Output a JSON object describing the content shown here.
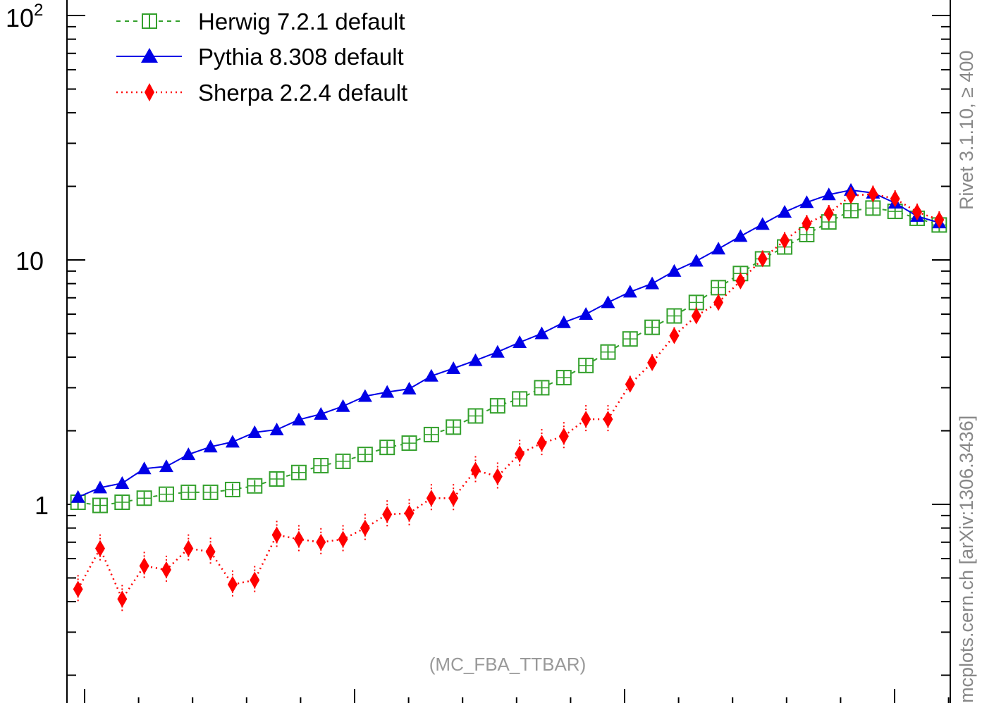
{
  "chart_data": {
    "type": "line",
    "title": "",
    "xlabel": "",
    "ylabel": "",
    "y_scale": "log",
    "ylim": [
      0.2,
      100
    ],
    "y_tick_labels": [
      {
        "value": 100,
        "base": "10",
        "exponent": "2"
      },
      {
        "value": 10,
        "label": "10"
      },
      {
        "value": 1,
        "label": "1"
      }
    ],
    "legend": {
      "placement": "top-left"
    },
    "annotation": "(MC_FBA_TTBAR)",
    "side_label_top": "Rivet 3.1.10, ≥ 400",
    "side_label_bottom": "mcplots.cern.ch [arXiv:1306.3436]",
    "bins": 40,
    "series": [
      {
        "name": "Herwig 7.2.1 default",
        "color": "#33a02c",
        "marker": "open-square",
        "line": "dashed",
        "values": [
          1.02,
          0.99,
          1.02,
          1.06,
          1.1,
          1.12,
          1.12,
          1.15,
          1.19,
          1.27,
          1.35,
          1.44,
          1.5,
          1.6,
          1.71,
          1.78,
          1.93,
          2.07,
          2.3,
          2.53,
          2.7,
          3.0,
          3.3,
          3.7,
          4.2,
          4.75,
          5.3,
          5.9,
          6.7,
          7.7,
          8.8,
          10.1,
          11.3,
          12.7,
          14.3,
          15.9,
          16.3,
          15.8,
          14.8,
          13.9
        ],
        "errors": [
          0.05,
          0.05,
          0.05,
          0.05,
          0.05,
          0.05,
          0.05,
          0.05,
          0.05,
          0.06,
          0.06,
          0.07,
          0.07,
          0.07,
          0.08,
          0.08,
          0.09,
          0.1,
          0.11,
          0.12,
          0.13,
          0.14,
          0.16,
          0.18,
          0.2,
          0.23,
          0.25,
          0.28,
          0.32,
          0.37,
          0.42,
          0.48,
          0.54,
          0.6,
          0.68,
          0.75,
          0.78,
          0.75,
          0.7,
          0.66
        ]
      },
      {
        "name": "Pythia 8.308 default",
        "color": "#0000e6",
        "marker": "filled-triangle",
        "line": "solid",
        "values": [
          1.07,
          1.17,
          1.22,
          1.4,
          1.43,
          1.6,
          1.72,
          1.8,
          1.97,
          2.02,
          2.22,
          2.34,
          2.52,
          2.77,
          2.88,
          2.97,
          3.35,
          3.6,
          3.88,
          4.2,
          4.6,
          5.0,
          5.55,
          6.0,
          6.7,
          7.4,
          8.0,
          9.0,
          9.9,
          11.1,
          12.5,
          14.0,
          15.7,
          17.2,
          18.5,
          19.3,
          18.8,
          17.1,
          15.1,
          14.2
        ]
      },
      {
        "name": "Sherpa 2.2.4 default",
        "color": "#ff0000",
        "marker": "filled-diamond",
        "line": "dotted",
        "values": [
          0.45,
          0.66,
          0.41,
          0.56,
          0.54,
          0.66,
          0.64,
          0.47,
          0.49,
          0.75,
          0.72,
          0.7,
          0.72,
          0.8,
          0.91,
          0.92,
          1.06,
          1.06,
          1.38,
          1.3,
          1.61,
          1.78,
          1.9,
          2.23,
          2.23,
          3.1,
          3.8,
          4.9,
          5.9,
          6.7,
          8.2,
          10.1,
          12.0,
          14.1,
          15.5,
          18.3,
          18.6,
          17.8,
          15.7,
          14.6
        ]
      }
    ]
  }
}
